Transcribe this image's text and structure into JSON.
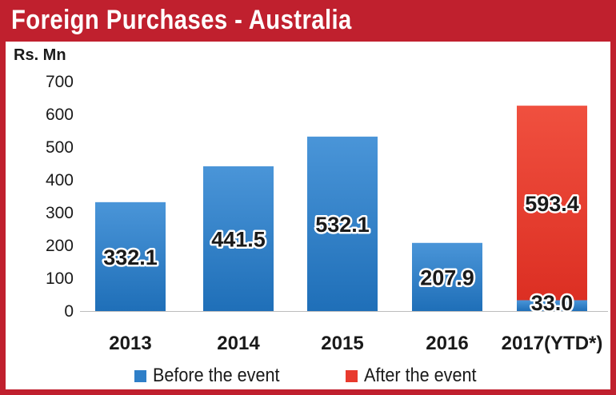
{
  "chart_data": {
    "type": "bar",
    "stacked": true,
    "title": "Foreign Purchases - Australia",
    "ylabel": "Rs. Mn",
    "xlabel": "",
    "categories": [
      "2013",
      "2014",
      "2015",
      "2016",
      "2017(YTD*)"
    ],
    "series": [
      {
        "name": "Before the event",
        "color": "#2f7fc8",
        "values": [
          332.1,
          441.5,
          532.1,
          207.9,
          33.0
        ],
        "labels": [
          "332.1",
          "441.5",
          "532.1",
          "207.9",
          "33.0"
        ]
      },
      {
        "name": "After the event",
        "color": "#e83a2e",
        "values": [
          0,
          0,
          0,
          0,
          593.4
        ],
        "labels": [
          "",
          "",
          "",
          "",
          "593.4"
        ]
      }
    ],
    "ylim": [
      0,
      700
    ],
    "yticks": [
      "0",
      "100",
      "200",
      "300",
      "400",
      "500",
      "600",
      "700"
    ],
    "grid": false,
    "legend_position": "bottom"
  }
}
